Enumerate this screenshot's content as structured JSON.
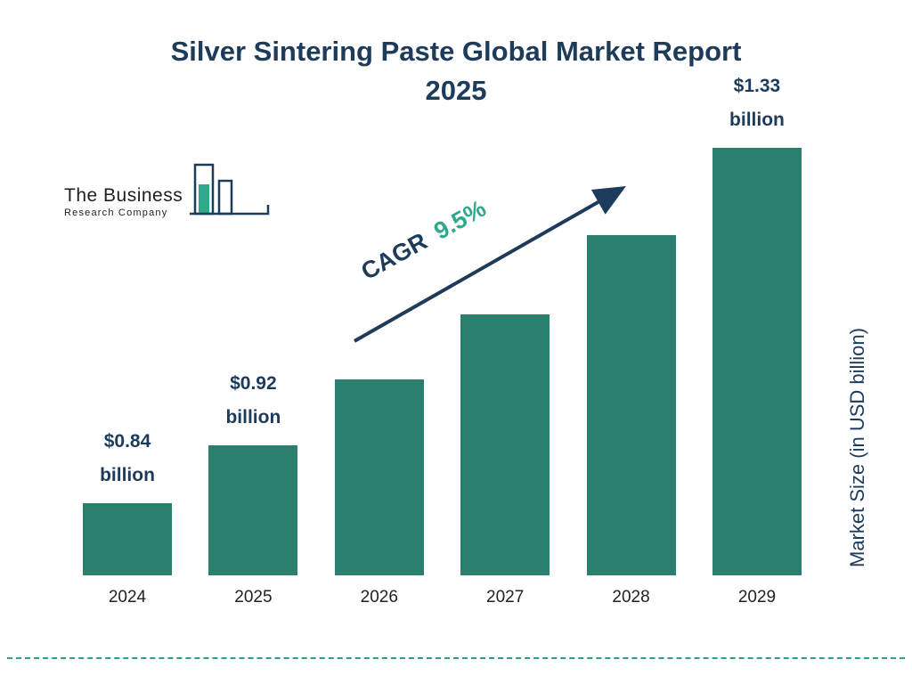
{
  "title": {
    "line1": "Silver Sintering Paste Global Market Report",
    "line2": "2025"
  },
  "logo": {
    "name_top": "The Business",
    "name_bottom": "Research Company"
  },
  "cagr": {
    "label": "CAGR",
    "value": "9.5%"
  },
  "y_axis": {
    "label": "Market Size (in USD billion)"
  },
  "colors": {
    "bar": "#2b7f6e",
    "navy": "#1d3b5a",
    "cagr_green": "#2fa98c",
    "dashed_line": "#2a9d8f"
  },
  "chart_data": {
    "type": "bar",
    "title": "Silver Sintering Paste Global Market Report 2025",
    "categories": [
      "2024",
      "2025",
      "2026",
      "2027",
      "2028",
      "2029"
    ],
    "values": [
      0.84,
      0.92,
      1.01,
      1.1,
      1.21,
      1.33
    ],
    "bar_labels": [
      "$0.84 billion",
      "$0.92 billion",
      null,
      null,
      null,
      "$1.33 billion"
    ],
    "ylabel": "Market Size (in USD billion)",
    "xlabel": "",
    "ylim": [
      0.74,
      1.33
    ],
    "legend": false,
    "grid": false,
    "annotation": "CAGR 9.5%"
  }
}
